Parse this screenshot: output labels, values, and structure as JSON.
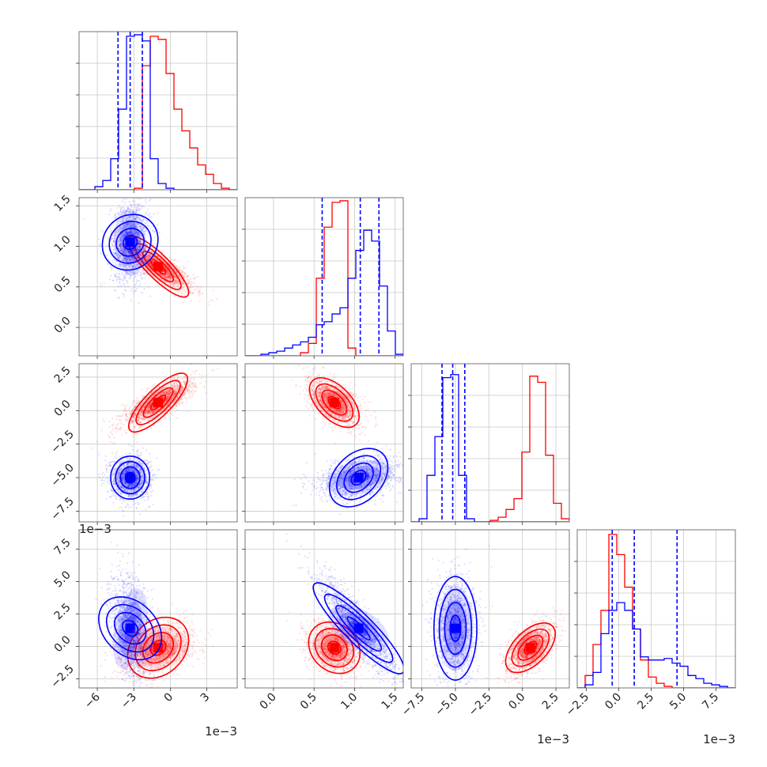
{
  "chart_data": {
    "type": "corner",
    "parameters": [
      {
        "ticks": [
          "−6",
          "−3",
          "0",
          "3"
        ],
        "tick_values": [
          -6,
          -3,
          0,
          3
        ],
        "range": [
          -7.5,
          5.5
        ],
        "offset_label": "1e−3"
      },
      {
        "ticks": [
          "0.0",
          "0.5",
          "1.0",
          "1.5"
        ],
        "tick_values": [
          0.0,
          0.5,
          1.0,
          1.5
        ],
        "range": [
          -0.35,
          1.6
        ],
        "offset_label": ""
      },
      {
        "ticks": [
          "−7.5",
          "−5.0",
          "−2.5",
          "0.0",
          "2.5"
        ],
        "tick_values": [
          -7.5,
          -5.0,
          -2.5,
          0.0,
          2.5
        ],
        "range": [
          -8.3,
          3.5
        ],
        "offset_label": "1e−3"
      },
      {
        "ticks": [
          "−2.5",
          "0.0",
          "2.5",
          "5.0",
          "7.5"
        ],
        "tick_values": [
          -2.5,
          0.0,
          2.5,
          5.0,
          7.5
        ],
        "range": [
          -3.2,
          9.0
        ],
        "offset_label": "1e−3"
      }
    ],
    "series": [
      {
        "name": "",
        "color": "#ff0000",
        "mean": [
          -1.0,
          0.75,
          0.6,
          -0.1
        ],
        "sd": [
          1.5,
          0.16,
          0.9,
          1.0
        ]
      },
      {
        "name": "",
        "color": "#0000ff",
        "mean": [
          -3.3,
          1.05,
          -5.0,
          1.4
        ],
        "sd": [
          0.8,
          0.25,
          0.8,
          2.0
        ]
      }
    ],
    "histograms": [
      {
        "edges": [
          -7.5,
          -6.85,
          -6.2,
          -5.55,
          -4.9,
          -4.25,
          -3.6,
          -2.95,
          -2.3,
          -1.65,
          -1.0,
          -0.35,
          0.3,
          0.95,
          1.6,
          2.25,
          2.9,
          3.55,
          4.2,
          4.85,
          5.5
        ],
        "red": [
          0,
          0,
          0,
          0,
          0,
          0,
          0,
          0.01,
          0.8,
          0.99,
          0.97,
          0.75,
          0.52,
          0.38,
          0.27,
          0.16,
          0.1,
          0.04,
          0.01,
          0
        ],
        "blue": [
          0,
          0,
          0.02,
          0.06,
          0.2,
          0.52,
          0.99,
          1.0,
          0.96,
          0.2,
          0.04,
          0.01,
          0,
          0,
          0,
          0,
          0,
          0,
          0,
          0
        ]
      },
      {
        "edges": [
          -0.35,
          -0.2525,
          -0.155,
          -0.0575,
          0.04,
          0.1375,
          0.235,
          0.3325,
          0.43,
          0.5275,
          0.625,
          0.7225,
          0.82,
          0.9175,
          1.015,
          1.1125,
          1.21,
          1.3075,
          1.405,
          1.5025,
          1.6
        ],
        "red": [
          0,
          0,
          0,
          0,
          0,
          0,
          0,
          0.02,
          0.08,
          0.5,
          0.83,
          0.99,
          1.0,
          0.05,
          0,
          0,
          0,
          0,
          0,
          0
        ],
        "blue": [
          0,
          0,
          0.01,
          0.02,
          0.03,
          0.05,
          0.07,
          0.09,
          0.12,
          0.2,
          0.22,
          0.27,
          0.31,
          0.5,
          0.68,
          0.81,
          0.74,
          0.45,
          0.16,
          0.01
        ]
      },
      {
        "edges": [
          -8.3,
          -7.71,
          -7.12,
          -6.53,
          -5.94,
          -5.35,
          -4.76,
          -4.17,
          -3.58,
          -2.99,
          -2.4,
          -1.81,
          -1.22,
          -0.63,
          -0.04,
          0.55,
          1.14,
          1.73,
          2.32,
          2.91,
          3.5
        ],
        "red": [
          0,
          0,
          0,
          0,
          0,
          0,
          0,
          0,
          0,
          0,
          0.01,
          0.03,
          0.08,
          0.15,
          0.45,
          0.94,
          0.9,
          0.43,
          0.12,
          0.02
        ],
        "blue": [
          0,
          0.02,
          0.3,
          0.55,
          0.93,
          0.95,
          0.3,
          0.02,
          0,
          0,
          0,
          0,
          0,
          0,
          0,
          0,
          0,
          0,
          0,
          0
        ]
      },
      {
        "edges": [
          -3.2,
          -2.59,
          -1.98,
          -1.37,
          -0.76,
          -0.15,
          0.46,
          1.07,
          1.68,
          2.29,
          2.9,
          3.51,
          4.12,
          4.73,
          5.34,
          5.95,
          6.56,
          7.17,
          7.78,
          8.39,
          9.0
        ],
        "red": [
          0,
          0.08,
          0.28,
          0.5,
          0.99,
          0.86,
          0.65,
          0.38,
          0.18,
          0.07,
          0.03,
          0.01,
          0,
          0,
          0,
          0,
          0,
          0,
          0,
          0
        ],
        "blue": [
          0,
          0.02,
          0.1,
          0.35,
          0.5,
          0.55,
          0.5,
          0.38,
          0.2,
          0.18,
          0.18,
          0.19,
          0.16,
          0.14,
          0.08,
          0.06,
          0.03,
          0.02,
          0.01,
          0
        ]
      }
    ],
    "quantile_lines": [
      [
        -4.3,
        -3.3,
        -2.3
      ],
      [
        0.6,
        1.07,
        1.3
      ],
      [
        -6.0,
        -5.2,
        -4.3
      ],
      [
        -0.5,
        1.2,
        4.5
      ]
    ],
    "grid": true
  }
}
